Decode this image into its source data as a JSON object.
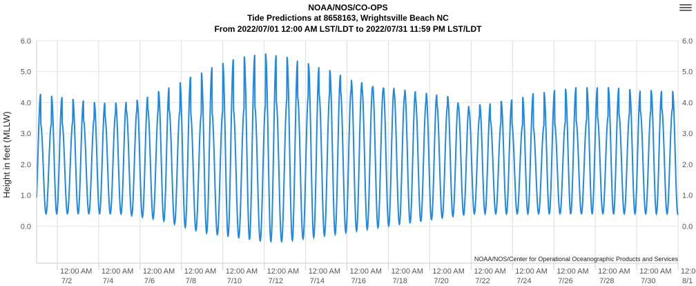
{
  "chart_data": {
    "type": "line",
    "title_lines": [
      "NOAA/NOS/CO-OPS",
      "Tide Predictions at 8658163, Wrightsville Beach NC",
      "From 2022/07/01 12:00 AM LST/LDT to 2022/07/31 11:59 PM LST/LDT"
    ],
    "ylabel": "Height in feet (MLLW)",
    "ylim": [
      -1.2,
      6.0
    ],
    "yticks": [
      "0.0",
      "1.0",
      "2.0",
      "3.0",
      "4.0",
      "5.0",
      "6.0"
    ],
    "xlim": [
      "2022-07-01 00:00",
      "2022-08-01 00:00"
    ],
    "x_ticks": [
      {
        "time": "12:00 AM",
        "date": "7/2"
      },
      {
        "time": "12:00 AM",
        "date": "7/4"
      },
      {
        "time": "12:00 AM",
        "date": "7/6"
      },
      {
        "time": "12:00 AM",
        "date": "7/8"
      },
      {
        "time": "12:00 AM",
        "date": "7/10"
      },
      {
        "time": "12:00 AM",
        "date": "7/12"
      },
      {
        "time": "12:00 AM",
        "date": "7/14"
      },
      {
        "time": "12:00 AM",
        "date": "7/16"
      },
      {
        "time": "12:00 AM",
        "date": "7/18"
      },
      {
        "time": "12:00 AM",
        "date": "7/20"
      },
      {
        "time": "12:00 AM",
        "date": "7/22"
      },
      {
        "time": "12:00 AM",
        "date": "7/24"
      },
      {
        "time": "12:00 AM",
        "date": "7/26"
      },
      {
        "time": "12:00 AM",
        "date": "7/28"
      },
      {
        "time": "12:00 AM",
        "date": "7/30"
      },
      {
        "time": "12:00",
        "date": "8/1"
      }
    ],
    "grid": true,
    "line_color": "#1e88e5",
    "high_tides": [
      4.3,
      4.2,
      4.1,
      4.0,
      4.0,
      4.1,
      4.4,
      4.7,
      5.0,
      5.3,
      5.5,
      5.6,
      5.5,
      5.3,
      5.1,
      4.8,
      4.6,
      4.4,
      4.2,
      4.0,
      3.9,
      3.9,
      4.0,
      4.1,
      4.3,
      4.4,
      4.5,
      4.5,
      4.5,
      4.4,
      4.4
    ],
    "secondary_high_tides": [
      3.3,
      3.3,
      3.4,
      3.5,
      3.7,
      3.8,
      3.8,
      3.7,
      3.6,
      3.7,
      3.8,
      3.9,
      4.1,
      4.2,
      4.3,
      4.4,
      4.5,
      4.5,
      4.4,
      4.3,
      4.2,
      3.7,
      3.4,
      3.3,
      3.2,
      3.3,
      3.4,
      3.5,
      3.6,
      3.7,
      3.8
    ],
    "low_tides": [
      0.4,
      0.4,
      0.4,
      0.4,
      0.4,
      0.3,
      0.2,
      0.0,
      -0.2,
      -0.3,
      -0.4,
      -0.5,
      -0.5,
      -0.4,
      -0.3,
      -0.2,
      -0.1,
      0.0,
      0.1,
      0.2,
      0.3,
      0.4,
      0.4,
      0.4,
      0.4,
      0.4,
      0.4,
      0.4,
      0.4,
      0.4,
      0.4
    ],
    "credit": "NOAA/NOS/Center for Operational Oceanographic Products and Services"
  },
  "menu": {
    "icon": "hamburger-menu-icon"
  }
}
